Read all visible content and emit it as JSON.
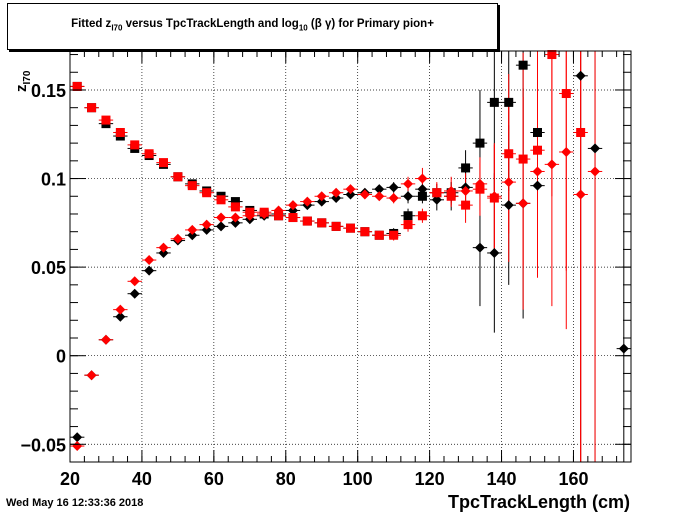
{
  "header": {
    "title_parts": [
      "Fitted  z",
      "I70",
      "  versus TpcTrackLength and log",
      "10",
      " (β γ) for Primary pion+"
    ]
  },
  "footer": {
    "datestamp": "Wed May 16 12:33:36 2018"
  },
  "chart_data": {
    "type": "scatter",
    "title": "Fitted  zI70  versus TpcTrackLength and log10 (β γ) for Primary pion+",
    "xlabel": "TpcTrackLength (cm)",
    "ylabel": "zI70",
    "xlim": [
      20,
      176
    ],
    "ylim": [
      -0.06,
      0.172
    ],
    "x_ticks": [
      20,
      40,
      60,
      80,
      100,
      120,
      140,
      160
    ],
    "y_ticks": [
      -0.05,
      0,
      0.05,
      0.1,
      0.15
    ],
    "y_tick_labels": [
      "−0.05",
      "0",
      "0.05",
      "0.1",
      "0.15"
    ],
    "grid": true,
    "series": [
      {
        "marker": "diamond",
        "color": "#000000",
        "points": [
          {
            "x": 22,
            "y": -0.046,
            "err": 0
          },
          {
            "x": 26,
            "y": -0.011,
            "err": 0
          },
          {
            "x": 30,
            "y": 0.009,
            "err": 0
          },
          {
            "x": 34,
            "y": 0.022,
            "err": 0
          },
          {
            "x": 38,
            "y": 0.035,
            "err": 0
          },
          {
            "x": 42,
            "y": 0.048,
            "err": 0
          },
          {
            "x": 46,
            "y": 0.058,
            "err": 0
          },
          {
            "x": 50,
            "y": 0.065,
            "err": 0
          },
          {
            "x": 54,
            "y": 0.068,
            "err": 0
          },
          {
            "x": 58,
            "y": 0.071,
            "err": 0
          },
          {
            "x": 62,
            "y": 0.073,
            "err": 0
          },
          {
            "x": 66,
            "y": 0.075,
            "err": 0
          },
          {
            "x": 70,
            "y": 0.077,
            "err": 0
          },
          {
            "x": 74,
            "y": 0.079,
            "err": 0
          },
          {
            "x": 78,
            "y": 0.08,
            "err": 0
          },
          {
            "x": 82,
            "y": 0.082,
            "err": 0
          },
          {
            "x": 86,
            "y": 0.085,
            "err": 0
          },
          {
            "x": 90,
            "y": 0.087,
            "err": 0
          },
          {
            "x": 94,
            "y": 0.089,
            "err": 0
          },
          {
            "x": 98,
            "y": 0.091,
            "err": 0
          },
          {
            "x": 102,
            "y": 0.092,
            "err": 0.002
          },
          {
            "x": 106,
            "y": 0.094,
            "err": 0.002
          },
          {
            "x": 110,
            "y": 0.095,
            "err": 0.003
          },
          {
            "x": 114,
            "y": 0.09,
            "err": 0.004
          },
          {
            "x": 118,
            "y": 0.094,
            "err": 0.006
          },
          {
            "x": 122,
            "y": 0.088,
            "err": 0.006
          },
          {
            "x": 126,
            "y": 0.09,
            "err": 0.008
          },
          {
            "x": 130,
            "y": 0.095,
            "err": 0.01
          },
          {
            "x": 134,
            "y": 0.061,
            "err": 0.033
          },
          {
            "x": 138,
            "y": 0.058,
            "err": 0.045
          },
          {
            "x": 142,
            "y": 0.085,
            "err": 0.045
          },
          {
            "x": 146,
            "y": 0.086,
            "err": 0.065
          },
          {
            "x": 150,
            "y": 0.096,
            "err": 0.05
          },
          {
            "x": 162,
            "y": 0.158,
            "err": 0.3
          },
          {
            "x": 166,
            "y": 0.117,
            "err": 0.3
          },
          {
            "x": 174,
            "y": 0.004,
            "err": 0.3
          }
        ]
      },
      {
        "marker": "square",
        "color": "#000000",
        "points": [
          {
            "x": 22,
            "y": 0.152,
            "err": 0
          },
          {
            "x": 26,
            "y": 0.14,
            "err": 0
          },
          {
            "x": 30,
            "y": 0.131,
            "err": 0
          },
          {
            "x": 34,
            "y": 0.124,
            "err": 0
          },
          {
            "x": 38,
            "y": 0.117,
            "err": 0
          },
          {
            "x": 42,
            "y": 0.113,
            "err": 0
          },
          {
            "x": 46,
            "y": 0.108,
            "err": 0
          },
          {
            "x": 50,
            "y": 0.101,
            "err": 0
          },
          {
            "x": 54,
            "y": 0.097,
            "err": 0
          },
          {
            "x": 58,
            "y": 0.093,
            "err": 0
          },
          {
            "x": 62,
            "y": 0.09,
            "err": 0
          },
          {
            "x": 66,
            "y": 0.087,
            "err": 0
          },
          {
            "x": 70,
            "y": 0.082,
            "err": 0
          },
          {
            "x": 74,
            "y": 0.08,
            "err": 0
          },
          {
            "x": 78,
            "y": 0.079,
            "err": 0
          },
          {
            "x": 82,
            "y": 0.078,
            "err": 0
          },
          {
            "x": 86,
            "y": 0.076,
            "err": 0
          },
          {
            "x": 90,
            "y": 0.075,
            "err": 0
          },
          {
            "x": 94,
            "y": 0.073,
            "err": 0.001
          },
          {
            "x": 98,
            "y": 0.072,
            "err": 0.001
          },
          {
            "x": 102,
            "y": 0.07,
            "err": 0.002
          },
          {
            "x": 106,
            "y": 0.068,
            "err": 0.002
          },
          {
            "x": 110,
            "y": 0.069,
            "err": 0.003
          },
          {
            "x": 114,
            "y": 0.079,
            "err": 0.004
          },
          {
            "x": 118,
            "y": 0.09,
            "err": 0.004
          },
          {
            "x": 122,
            "y": 0.092,
            "err": 0.005
          },
          {
            "x": 126,
            "y": 0.092,
            "err": 0.006
          },
          {
            "x": 130,
            "y": 0.106,
            "err": 0.01
          },
          {
            "x": 134,
            "y": 0.12,
            "err": 0.03
          },
          {
            "x": 138,
            "y": 0.143,
            "err": 0.05
          },
          {
            "x": 142,
            "y": 0.143,
            "err": 0.05
          },
          {
            "x": 146,
            "y": 0.164,
            "err": 0.05
          },
          {
            "x": 150,
            "y": 0.126,
            "err": 0.05
          }
        ]
      },
      {
        "marker": "diamond",
        "color": "#ff0000",
        "points": [
          {
            "x": 22,
            "y": -0.051,
            "err": 0
          },
          {
            "x": 26,
            "y": -0.011,
            "err": 0
          },
          {
            "x": 30,
            "y": 0.009,
            "err": 0
          },
          {
            "x": 34,
            "y": 0.026,
            "err": 0
          },
          {
            "x": 38,
            "y": 0.042,
            "err": 0
          },
          {
            "x": 42,
            "y": 0.054,
            "err": 0
          },
          {
            "x": 46,
            "y": 0.061,
            "err": 0
          },
          {
            "x": 50,
            "y": 0.066,
            "err": 0
          },
          {
            "x": 54,
            "y": 0.071,
            "err": 0
          },
          {
            "x": 58,
            "y": 0.074,
            "err": 0
          },
          {
            "x": 62,
            "y": 0.078,
            "err": 0
          },
          {
            "x": 66,
            "y": 0.078,
            "err": 0
          },
          {
            "x": 70,
            "y": 0.079,
            "err": 0
          },
          {
            "x": 74,
            "y": 0.08,
            "err": 0
          },
          {
            "x": 78,
            "y": 0.082,
            "err": 0
          },
          {
            "x": 82,
            "y": 0.085,
            "err": 0
          },
          {
            "x": 86,
            "y": 0.087,
            "err": 0
          },
          {
            "x": 90,
            "y": 0.09,
            "err": 0
          },
          {
            "x": 94,
            "y": 0.092,
            "err": 0
          },
          {
            "x": 98,
            "y": 0.094,
            "err": 0
          },
          {
            "x": 102,
            "y": 0.091,
            "err": 0.002
          },
          {
            "x": 106,
            "y": 0.09,
            "err": 0.002
          },
          {
            "x": 110,
            "y": 0.089,
            "err": 0.003
          },
          {
            "x": 114,
            "y": 0.097,
            "err": 0.004
          },
          {
            "x": 118,
            "y": 0.1,
            "err": 0.006
          },
          {
            "x": 122,
            "y": 0.092,
            "err": 0.006
          },
          {
            "x": 126,
            "y": 0.093,
            "err": 0.008
          },
          {
            "x": 130,
            "y": 0.093,
            "err": 0.01
          },
          {
            "x": 134,
            "y": 0.097,
            "err": 0.015
          },
          {
            "x": 138,
            "y": 0.09,
            "err": 0.03
          },
          {
            "x": 142,
            "y": 0.098,
            "err": 0.045
          },
          {
            "x": 146,
            "y": 0.086,
            "err": 0.06
          },
          {
            "x": 150,
            "y": 0.104,
            "err": 0.06
          },
          {
            "x": 154,
            "y": 0.108,
            "err": 0.08
          },
          {
            "x": 158,
            "y": 0.115,
            "err": 0.1
          },
          {
            "x": 162,
            "y": 0.091,
            "err": 0.3
          },
          {
            "x": 166,
            "y": 0.104,
            "err": 0.3
          }
        ]
      },
      {
        "marker": "square",
        "color": "#ff0000",
        "points": [
          {
            "x": 22,
            "y": 0.152,
            "err": 0
          },
          {
            "x": 26,
            "y": 0.14,
            "err": 0
          },
          {
            "x": 30,
            "y": 0.133,
            "err": 0
          },
          {
            "x": 34,
            "y": 0.126,
            "err": 0
          },
          {
            "x": 38,
            "y": 0.119,
            "err": 0
          },
          {
            "x": 42,
            "y": 0.114,
            "err": 0
          },
          {
            "x": 46,
            "y": 0.109,
            "err": 0
          },
          {
            "x": 50,
            "y": 0.101,
            "err": 0
          },
          {
            "x": 54,
            "y": 0.096,
            "err": 0
          },
          {
            "x": 58,
            "y": 0.092,
            "err": 0
          },
          {
            "x": 62,
            "y": 0.088,
            "err": 0
          },
          {
            "x": 66,
            "y": 0.084,
            "err": 0
          },
          {
            "x": 70,
            "y": 0.081,
            "err": 0
          },
          {
            "x": 74,
            "y": 0.081,
            "err": 0
          },
          {
            "x": 78,
            "y": 0.079,
            "err": 0
          },
          {
            "x": 82,
            "y": 0.078,
            "err": 0
          },
          {
            "x": 86,
            "y": 0.076,
            "err": 0
          },
          {
            "x": 90,
            "y": 0.075,
            "err": 0
          },
          {
            "x": 94,
            "y": 0.073,
            "err": 0.001
          },
          {
            "x": 98,
            "y": 0.072,
            "err": 0.001
          },
          {
            "x": 102,
            "y": 0.07,
            "err": 0.002
          },
          {
            "x": 106,
            "y": 0.068,
            "err": 0.002
          },
          {
            "x": 110,
            "y": 0.068,
            "err": 0.003
          },
          {
            "x": 114,
            "y": 0.074,
            "err": 0.004
          },
          {
            "x": 118,
            "y": 0.079,
            "err": 0.004
          },
          {
            "x": 122,
            "y": 0.092,
            "err": 0.005
          },
          {
            "x": 126,
            "y": 0.09,
            "err": 0.006
          },
          {
            "x": 130,
            "y": 0.085,
            "err": 0.01
          },
          {
            "x": 134,
            "y": 0.094,
            "err": 0.015
          },
          {
            "x": 138,
            "y": 0.089,
            "err": 0.03
          },
          {
            "x": 142,
            "y": 0.114,
            "err": 0.045
          },
          {
            "x": 146,
            "y": 0.111,
            "err": 0.06
          },
          {
            "x": 150,
            "y": 0.116,
            "err": 0.06
          },
          {
            "x": 154,
            "y": 0.17,
            "err": 0.08
          },
          {
            "x": 158,
            "y": 0.148,
            "err": 0.1
          },
          {
            "x": 162,
            "y": 0.126,
            "err": 0.3
          }
        ]
      }
    ]
  }
}
